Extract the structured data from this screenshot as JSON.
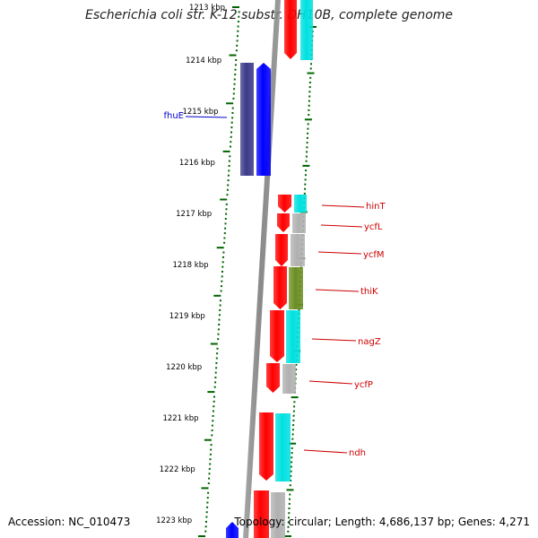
{
  "title": "Escherichia coli str. K-12 substr. DH10B, complete genome",
  "footer": {
    "accession": "Accession: NC_010473",
    "stats": "Topology: circular; Length: 4,686,137 bp; Genes: 4,271"
  },
  "scale_labels": [
    "1213 kbp",
    "1214 kbp",
    "1215 kbp",
    "1216 kbp",
    "1217 kbp",
    "1218 kbp",
    "1219 kbp",
    "1220 kbp",
    "1221 kbp",
    "1222 kbp",
    "1223 kbp"
  ],
  "gene_labels": [
    {
      "text": "fhuE",
      "color": "#0000cc"
    },
    {
      "text": "hinT",
      "color": "#cc0000"
    },
    {
      "text": "ycfL",
      "color": "#cc0000"
    },
    {
      "text": "ycfM",
      "color": "#cc0000"
    },
    {
      "text": "thiK",
      "color": "#cc0000"
    },
    {
      "text": "nagZ",
      "color": "#cc0000"
    },
    {
      "text": "ycfP",
      "color": "#cc0000"
    },
    {
      "text": "ndh",
      "color": "#cc0000"
    }
  ],
  "colors": {
    "forward_strand": "#ff0000",
    "reverse_strand": "#0000ff",
    "reverse_cog": "#3a3a8a",
    "cog_cyan": "#00e0e0",
    "cog_gray": "#b0b0b0",
    "cog_olive": "#6b8e23",
    "backbone": "#8a8a8a",
    "tick_green": "#006400"
  }
}
